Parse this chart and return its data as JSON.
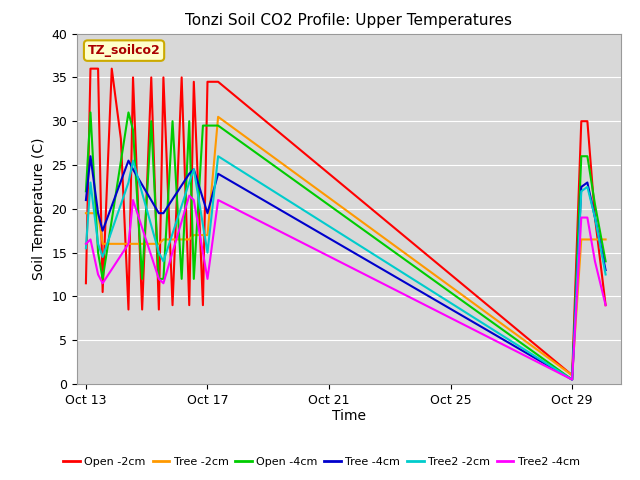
{
  "title": "Tonzi Soil CO2 Profile: Upper Temperatures",
  "xlabel": "Time",
  "ylabel": "Soil Temperature (C)",
  "ylim": [
    0,
    40
  ],
  "xlim": [
    12.7,
    30.6
  ],
  "plot_bg_color": "#d8d8d8",
  "fig_bg_color": "#ffffff",
  "annotation_text": "TZ_soilco2",
  "annotation_color": "#aa0000",
  "annotation_bg": "#ffffcc",
  "annotation_border": "#ccaa00",
  "series": [
    {
      "label": "Open -2cm",
      "color": "#ff0000",
      "x": [
        13.0,
        13.15,
        13.15,
        13.4,
        13.4,
        13.55,
        13.55,
        13.85,
        13.85,
        14.15,
        14.15,
        14.4,
        14.4,
        14.55,
        14.55,
        14.85,
        14.85,
        15.15,
        15.15,
        15.4,
        15.4,
        15.55,
        15.55,
        15.85,
        15.85,
        16.15,
        16.15,
        16.4,
        16.4,
        16.55,
        16.55,
        16.85,
        16.85,
        17.0,
        17.0,
        17.35,
        17.35,
        29.0,
        29.0,
        29.3,
        29.3,
        29.5,
        29.5,
        29.75,
        29.75,
        30.1
      ],
      "y": [
        11.5,
        36.0,
        36.0,
        36.0,
        36.0,
        10.5,
        10.5,
        36.0,
        36.0,
        28.0,
        28.0,
        8.5,
        8.5,
        35.0,
        35.0,
        8.5,
        8.5,
        35.0,
        35.0,
        8.5,
        8.5,
        35.0,
        35.0,
        9.0,
        9.0,
        35.0,
        35.0,
        9.0,
        9.0,
        34.5,
        34.5,
        9.0,
        9.0,
        34.5,
        34.5,
        34.5,
        34.5,
        1.0,
        1.0,
        30.0,
        30.0,
        30.0,
        30.0,
        19.0,
        19.0,
        9.0
      ]
    },
    {
      "label": "Tree -2cm",
      "color": "#ff9900",
      "x": [
        13.0,
        13.4,
        13.55,
        14.4,
        14.55,
        15.4,
        15.55,
        16.4,
        16.55,
        17.0,
        17.35,
        29.0,
        29.3,
        29.5,
        29.75,
        30.1
      ],
      "y": [
        19.5,
        19.5,
        16.0,
        16.0,
        16.0,
        16.0,
        16.5,
        16.5,
        17.0,
        17.0,
        30.5,
        1.0,
        16.5,
        16.5,
        16.5,
        16.5
      ]
    },
    {
      "label": "Open -4cm",
      "color": "#00cc00",
      "x": [
        13.0,
        13.15,
        13.15,
        13.4,
        13.55,
        14.4,
        14.55,
        14.85,
        14.85,
        15.15,
        15.4,
        15.55,
        15.85,
        16.15,
        16.4,
        16.55,
        16.85,
        17.0,
        17.35,
        29.0,
        29.3,
        29.5,
        29.75,
        30.1
      ],
      "y": [
        22.0,
        31.0,
        31.0,
        15.0,
        12.0,
        31.0,
        29.0,
        12.0,
        12.0,
        30.0,
        12.0,
        12.0,
        30.0,
        12.0,
        30.0,
        12.0,
        29.5,
        29.5,
        29.5,
        0.5,
        26.0,
        26.0,
        20.5,
        14.0
      ]
    },
    {
      "label": "Tree -4cm",
      "color": "#0000cc",
      "x": [
        13.0,
        13.15,
        13.4,
        13.55,
        14.4,
        14.55,
        15.4,
        15.55,
        16.4,
        16.55,
        17.0,
        17.35,
        29.0,
        29.3,
        29.5,
        29.75,
        30.1
      ],
      "y": [
        21.0,
        26.0,
        19.5,
        17.5,
        25.5,
        24.5,
        19.5,
        19.5,
        24.0,
        24.5,
        19.5,
        24.0,
        0.5,
        22.5,
        23.0,
        19.0,
        13.0
      ]
    },
    {
      "label": "Tree2 -2cm",
      "color": "#00cccc",
      "x": [
        13.0,
        13.15,
        13.4,
        13.55,
        14.4,
        14.55,
        15.4,
        15.55,
        16.4,
        16.55,
        17.0,
        17.35,
        29.0,
        29.3,
        29.5,
        29.75,
        30.1
      ],
      "y": [
        15.5,
        23.0,
        16.0,
        14.5,
        23.0,
        25.5,
        15.0,
        14.0,
        23.0,
        24.5,
        15.0,
        26.0,
        0.5,
        22.0,
        22.5,
        19.0,
        12.5
      ]
    },
    {
      "label": "Tree2 -4cm",
      "color": "#ff00ff",
      "x": [
        13.0,
        13.15,
        13.4,
        13.55,
        14.4,
        14.55,
        15.4,
        15.55,
        16.4,
        16.55,
        17.0,
        17.35,
        29.0,
        29.3,
        29.5,
        29.75,
        30.1
      ],
      "y": [
        16.0,
        16.5,
        12.5,
        11.5,
        16.0,
        21.0,
        12.0,
        11.5,
        21.5,
        21.0,
        12.0,
        21.0,
        0.5,
        19.0,
        19.0,
        14.0,
        9.0
      ]
    }
  ],
  "xtick_labels": [
    "Oct 13",
    "Oct 17",
    "Oct 21",
    "Oct 25",
    "Oct 29"
  ],
  "xtick_days": [
    13,
    17,
    21,
    25,
    29
  ],
  "ytick_values": [
    0,
    5,
    10,
    15,
    20,
    25,
    30,
    35,
    40
  ],
  "grid_color": "#ffffff",
  "line_width": 1.5,
  "title_fontsize": 11,
  "axis_fontsize": 9,
  "label_fontsize": 10
}
